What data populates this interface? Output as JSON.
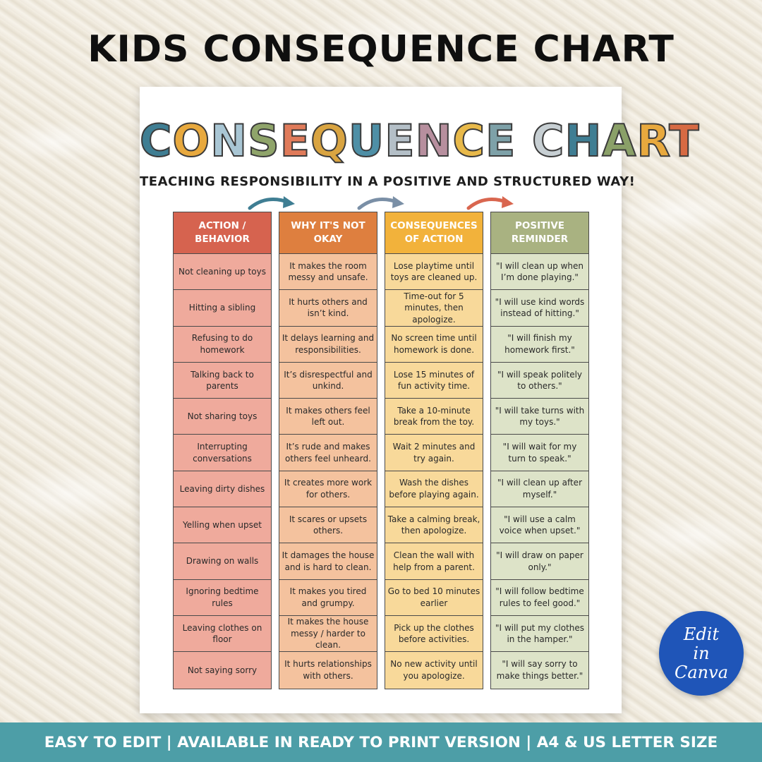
{
  "header": {
    "title": "KIDS CONSEQUENCE CHART"
  },
  "chart": {
    "title_letters": [
      {
        "ch": "C",
        "color": "#3f7e93"
      },
      {
        "ch": "O",
        "color": "#e8a93e"
      },
      {
        "ch": "N",
        "color": "#a9c6d4"
      },
      {
        "ch": "S",
        "color": "#8fa46a"
      },
      {
        "ch": "E",
        "color": "#e07b5a"
      },
      {
        "ch": "Q",
        "color": "#d9a441"
      },
      {
        "ch": "U",
        "color": "#4e8fa6"
      },
      {
        "ch": "E",
        "color": "#b4bfc7"
      },
      {
        "ch": "N",
        "color": "#b78f9e"
      },
      {
        "ch": "C",
        "color": "#e8b94a"
      },
      {
        "ch": "E",
        "color": "#7ea1a8"
      },
      {
        "ch": " ",
        "color": "#ffffff"
      },
      {
        "ch": "C",
        "color": "#c7cfd3"
      },
      {
        "ch": "H",
        "color": "#3f7e93"
      },
      {
        "ch": "A",
        "color": "#8aa068"
      },
      {
        "ch": "R",
        "color": "#e8a93e"
      },
      {
        "ch": "T",
        "color": "#d76a43"
      }
    ],
    "subtitle": "TEACHING RESPONSIBILITY IN A POSITIVE AND STRUCTURED WAY!",
    "columns": [
      {
        "header": "ACTION / BEHAVIOR",
        "header_color": "#d6634f",
        "cell_color": "#efaa9c",
        "cells": [
          "Not cleaning up toys",
          "Hitting a sibling",
          "Refusing to do homework",
          "Talking back to parents",
          "Not sharing toys",
          "Interrupting conversations",
          "Leaving dirty dishes",
          "Yelling when upset",
          "Drawing on walls",
          "Ignoring bedtime rules",
          "Leaving clothes on floor",
          "Not saying sorry"
        ]
      },
      {
        "header": "WHY IT'S NOT OKAY",
        "header_color": "#de7f3f",
        "cell_color": "#f4c29e",
        "cells": [
          "It makes the room messy and unsafe.",
          "It hurts others and isn’t kind.",
          "It delays learning and responsibilities.",
          "It’s disrespectful and unkind.",
          "It makes others feel left out.",
          "It’s rude and makes others feel unheard.",
          "It creates more work for others.",
          "It scares or upsets others.",
          "It damages the house and is hard to clean.",
          "It makes you tired and grumpy.",
          "It makes the house messy / harder to clean.",
          "It hurts relationships with others."
        ]
      },
      {
        "header": "CONSEQUENCES OF ACTION",
        "header_color": "#f2b23b",
        "cell_color": "#f8d99a",
        "cells": [
          "Lose playtime until toys are cleaned up.",
          "Time-out for 5 minutes, then apologize.",
          "No screen time until homework is done.",
          "Lose 15 minutes of fun activity time.",
          "Take a 10-minute break from the toy.",
          "Wait 2 minutes and try again.",
          "Wash the dishes before playing again.",
          "Take a calming break, then apologize.",
          "Clean the wall with help from a parent.",
          "Go to bed 10 minutes earlier",
          "Pick up the clothes before activities.",
          "No new activity until you apologize."
        ]
      },
      {
        "header": "POSITIVE REMINDER",
        "header_color": "#a9b281",
        "cell_color": "#dde3c8",
        "cells": [
          "\"I will clean up when I’m done playing.\"",
          "\"I will use kind words instead of hitting.\"",
          "\"I will finish my homework first.\"",
          "\"I will speak politely to others.\"",
          "\"I will take turns with my toys.\"",
          "\"I will wait for my turn to speak.\"",
          "\"I will clean up after myself.\"",
          "\"I will use a calm voice when upset.\"",
          "\"I will draw on paper only.\"",
          "\"I will follow bedtime rules to feel good.\"",
          "\"I will put my clothes in the hamper.\"",
          "\"I will say sorry to make things better.\""
        ]
      }
    ],
    "arrow_colors": [
      "#3f7e93",
      "#7a8fa6",
      "#d9664f"
    ]
  },
  "badge": {
    "line1": "Edit",
    "line2": "in",
    "line3": "Canva"
  },
  "footer": {
    "text": "EASY TO EDIT | AVAILABLE IN READY TO PRINT VERSION | A4 & US LETTER SIZE"
  }
}
